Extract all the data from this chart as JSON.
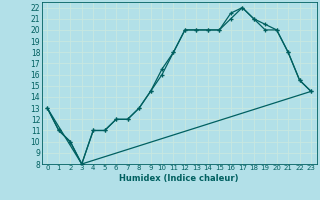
{
  "xlabel": "Humidex (Indice chaleur)",
  "background_color": "#b2e0e8",
  "grid_color": "#c8e8e0",
  "line_color": "#006060",
  "xlim": [
    -0.5,
    23.5
  ],
  "ylim": [
    8,
    22.5
  ],
  "xticks": [
    0,
    1,
    2,
    3,
    4,
    5,
    6,
    7,
    8,
    9,
    10,
    11,
    12,
    13,
    14,
    15,
    16,
    17,
    18,
    19,
    20,
    21,
    22,
    23
  ],
  "yticks": [
    8,
    9,
    10,
    11,
    12,
    13,
    14,
    15,
    16,
    17,
    18,
    19,
    20,
    21,
    22
  ],
  "curve1_x": [
    0,
    1,
    2,
    3,
    4,
    5,
    6,
    7,
    8,
    9,
    10,
    11,
    12,
    13,
    14,
    15,
    16,
    17,
    18,
    19,
    20,
    21,
    22,
    23
  ],
  "curve1_y": [
    13,
    11,
    10,
    8,
    11,
    11,
    12,
    12,
    13,
    14.5,
    16.5,
    18,
    20,
    20,
    20,
    20,
    21,
    22,
    21,
    20,
    20,
    18,
    15.5,
    14.5
  ],
  "curve2_x": [
    0,
    1,
    2,
    3,
    4,
    5,
    6,
    7,
    8,
    9,
    10,
    11,
    12,
    13,
    14,
    15,
    16,
    17,
    18,
    19,
    20,
    21,
    22,
    23
  ],
  "curve2_y": [
    13,
    11,
    10,
    8,
    11,
    11,
    12,
    12,
    13,
    14.5,
    16,
    18,
    20,
    20,
    20,
    20,
    21.5,
    22,
    21,
    20.5,
    20,
    18,
    15.5,
    14.5
  ],
  "line3_x": [
    0,
    3,
    23
  ],
  "line3_y": [
    13,
    8,
    14.5
  ]
}
